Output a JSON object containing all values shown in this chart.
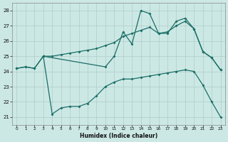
{
  "xlabel": "Humidex (Indice chaleur)",
  "xlim": [
    -0.5,
    23.5
  ],
  "ylim": [
    20.5,
    28.5
  ],
  "yticks": [
    21,
    22,
    23,
    24,
    25,
    26,
    27,
    28
  ],
  "xticks": [
    0,
    1,
    2,
    3,
    4,
    5,
    6,
    7,
    8,
    9,
    10,
    11,
    12,
    13,
    14,
    15,
    16,
    17,
    18,
    19,
    20,
    21,
    22,
    23
  ],
  "background_color": "#cce8e5",
  "grid_color": "#b0ccc9",
  "line_color": "#1a6e65",
  "line1_x": [
    0,
    1,
    2,
    3,
    10,
    11,
    12,
    13,
    14,
    15,
    16,
    17,
    18,
    19,
    20,
    21,
    22,
    23
  ],
  "line1_y": [
    24.2,
    24.3,
    24.2,
    25.0,
    24.3,
    25.0,
    26.6,
    25.8,
    28.0,
    27.8,
    26.5,
    26.5,
    27.3,
    27.5,
    26.8,
    25.3,
    24.9,
    24.1
  ],
  "line2_x": [
    0,
    1,
    2,
    3,
    4,
    5,
    6,
    7,
    8,
    9,
    10,
    11,
    12,
    13,
    14,
    15,
    16,
    17,
    18,
    19,
    20,
    21,
    22,
    23
  ],
  "line2_y": [
    24.2,
    24.3,
    24.2,
    25.0,
    25.0,
    25.1,
    25.2,
    25.3,
    25.4,
    25.5,
    25.7,
    25.9,
    26.3,
    26.5,
    26.7,
    26.9,
    26.5,
    26.6,
    27.0,
    27.3,
    26.8,
    25.3,
    24.9,
    24.1
  ],
  "line3_x": [
    3,
    4,
    5,
    6,
    7,
    8,
    9,
    10,
    11,
    12,
    13,
    14,
    15,
    16,
    17,
    18,
    19,
    20,
    21,
    22,
    23
  ],
  "line3_y": [
    25.0,
    21.2,
    21.6,
    21.7,
    21.7,
    21.9,
    22.4,
    23.0,
    23.3,
    23.5,
    23.5,
    23.6,
    23.7,
    23.8,
    23.9,
    24.0,
    24.1,
    24.0,
    23.1,
    22.0,
    21.0
  ]
}
